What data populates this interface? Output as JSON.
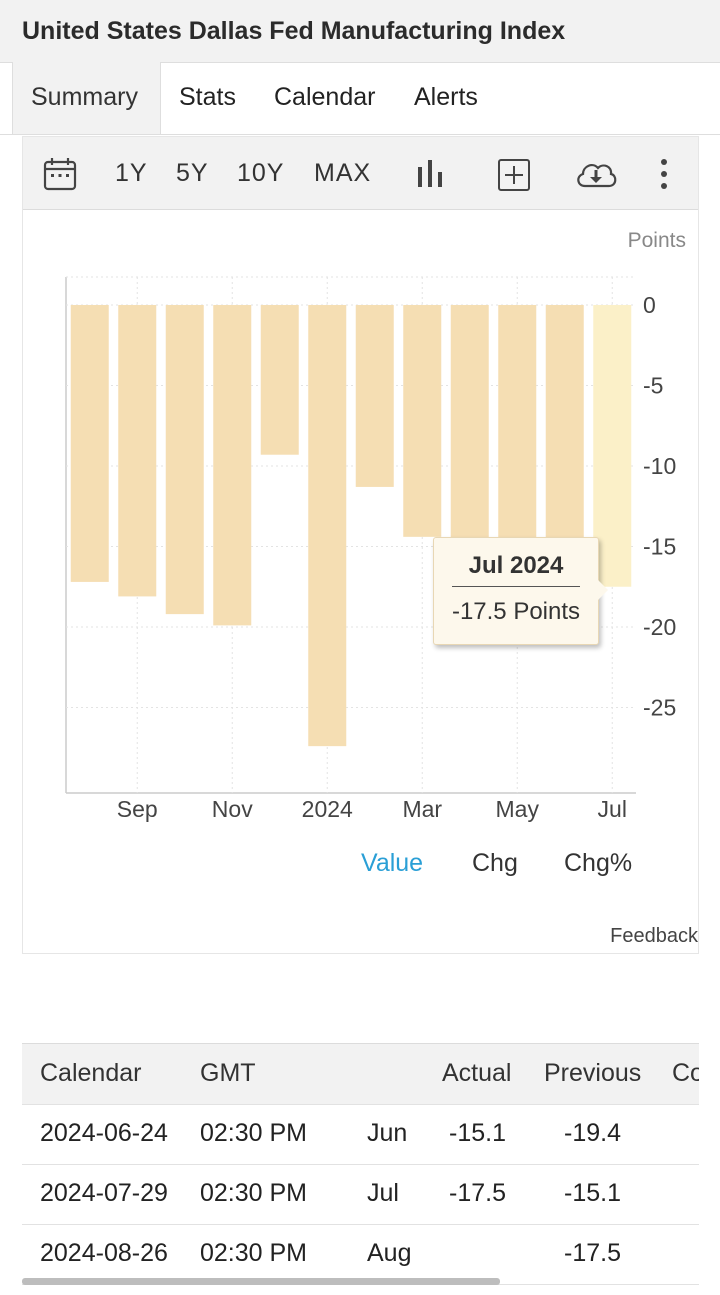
{
  "page": {
    "title": "United States Dallas Fed Manufacturing Index"
  },
  "tabs": [
    {
      "label": "Summary",
      "active": true
    },
    {
      "label": "Stats",
      "active": false
    },
    {
      "label": "Calendar",
      "active": false
    },
    {
      "label": "Alerts",
      "active": false
    }
  ],
  "toolbar": {
    "ranges": [
      "1Y",
      "5Y",
      "10Y",
      "MAX"
    ],
    "icons": [
      "calendar-icon",
      "bar-chart-icon",
      "add-icon",
      "download-icon",
      "more-options-icon"
    ]
  },
  "chart_data": {
    "type": "bar",
    "units": "Points",
    "categories": [
      "Aug 2023",
      "Sep 2023",
      "Oct 2023",
      "Nov 2023",
      "Dec 2023",
      "Jan 2024",
      "Feb 2024",
      "Mar 2024",
      "Apr 2024",
      "May 2024",
      "Jun 2024",
      "Jul 2024"
    ],
    "values": [
      -17.2,
      -18.1,
      -19.2,
      -19.9,
      -9.3,
      -27.4,
      -11.3,
      -14.4,
      -14.5,
      -19.4,
      -15.1,
      -17.5
    ],
    "xtick_labels": [
      "Sep",
      "Nov",
      "2024",
      "Mar",
      "May",
      "Jul"
    ],
    "xtick_category_index": [
      1,
      3,
      5,
      7,
      9,
      11
    ],
    "ytick_labels": [
      "0",
      "-5",
      "-10",
      "-15",
      "-20",
      "-25"
    ],
    "ytick_values": [
      0,
      -5,
      -10,
      -15,
      -20,
      -25
    ],
    "ylim": [
      -30,
      0
    ],
    "grid": true,
    "bar_color": "#f5deb3",
    "highlight_color": "#fbf0c8",
    "highlight_index": 11,
    "legend": [
      "Value",
      "Chg",
      "Chg%"
    ],
    "active_legend": "Value",
    "active_legend_color": "#2a9fd6"
  },
  "tooltip": {
    "date": "Jul 2024",
    "value": "-17.5 Points"
  },
  "feedback_label": "Feedback",
  "calendar_table": {
    "columns": [
      "Calendar",
      "GMT",
      "",
      "Actual",
      "Previous",
      "Co"
    ],
    "rows": [
      [
        "2024-06-24",
        "02:30 PM",
        "Jun",
        "-15.1",
        "-19.4",
        ""
      ],
      [
        "2024-07-29",
        "02:30 PM",
        "Jul",
        "-17.5",
        "-15.1",
        ""
      ],
      [
        "2024-08-26",
        "02:30 PM",
        "Aug",
        "",
        "-17.5",
        ""
      ]
    ]
  }
}
